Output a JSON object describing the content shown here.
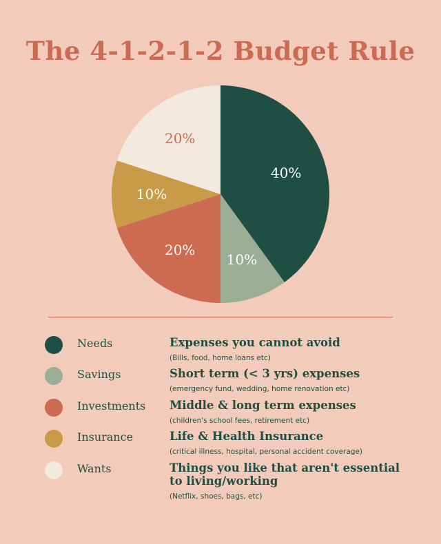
{
  "chart_data": {
    "type": "pie",
    "title": "The 4-1-2-1-2 Budget Rule",
    "slices": [
      {
        "name": "Needs",
        "value": 40,
        "label": "40%",
        "color": "#1f4e43",
        "label_color": "#ffffff"
      },
      {
        "name": "Savings",
        "value": 10,
        "label": "10%",
        "color": "#9aae96",
        "label_color": "#ffffff"
      },
      {
        "name": "Investments",
        "value": 20,
        "label": "20%",
        "color": "#cc6a52",
        "label_color": "#ffffff"
      },
      {
        "name": "Insurance",
        "value": 10,
        "label": "10%",
        "color": "#c99a47",
        "label_color": "#ffffff"
      },
      {
        "name": "Wants",
        "value": 20,
        "label": "20%",
        "color": "#f3e9df",
        "label_color": "#cc6a52"
      }
    ],
    "legend": [
      {
        "name": "Needs",
        "desc": "Expenses you cannot avoid",
        "note": "(Bills, food, home loans etc)",
        "color": "#1f4e43"
      },
      {
        "name": "Savings",
        "desc": "Short term (< 3 yrs) expenses",
        "note": "(emergency fund, wedding, home renovation etc)",
        "color": "#9aae96"
      },
      {
        "name": "Investments",
        "desc": "Middle & long term expenses",
        "note": "(children's school fees, retirement etc)",
        "color": "#cc6a52"
      },
      {
        "name": "Insurance",
        "desc": "Life & Health Insurance",
        "note": "(critical illness, hospital, personal accident coverage)",
        "color": "#c99a47"
      },
      {
        "name": "Wants",
        "desc": "Things you like that aren't essential to living/working",
        "note": "(Netflix, shoes, bags, etc)",
        "color": "#f3e9df"
      }
    ]
  }
}
